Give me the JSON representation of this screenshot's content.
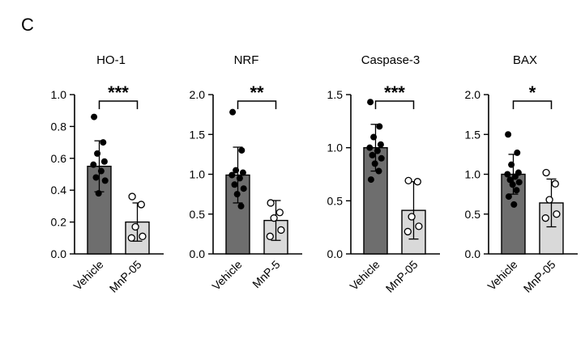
{
  "panel_label": "C",
  "chart_data": [
    {
      "type": "bar",
      "title": "HO-1",
      "categories": [
        "Vehicle",
        "MnP-05"
      ],
      "values": [
        0.55,
        0.2
      ],
      "error_sd": [
        0.16,
        0.12
      ],
      "ylim": [
        0,
        1.0
      ],
      "yticks": [
        0.0,
        0.2,
        0.4,
        0.6,
        0.8,
        1.0
      ],
      "ytick_labels": [
        "0.0",
        "0.2",
        "0.4",
        "0.6",
        "0.8",
        "1.0"
      ],
      "significance": "***",
      "points": [
        [
          0.86,
          0.7,
          0.63,
          0.58,
          0.56,
          0.52,
          0.48,
          0.46,
          0.38
        ],
        [
          0.36,
          0.31,
          0.17,
          0.11,
          0.1
        ]
      ]
    },
    {
      "type": "bar",
      "title": "NRF",
      "categories": [
        "Vehicle",
        "MnP-5"
      ],
      "values": [
        0.99,
        0.42
      ],
      "error_sd": [
        0.35,
        0.25
      ],
      "ylim": [
        0,
        2.0
      ],
      "yticks": [
        0.0,
        0.5,
        1.0,
        1.5,
        2.0
      ],
      "ytick_labels": [
        "0.0",
        "0.5",
        "1.0",
        "1.5",
        "2.0"
      ],
      "significance": "**",
      "points": [
        [
          1.78,
          1.3,
          1.05,
          1.02,
          0.99,
          0.95,
          0.87,
          0.82,
          0.75,
          0.6
        ],
        [
          0.64,
          0.52,
          0.45,
          0.3,
          0.22
        ]
      ]
    },
    {
      "type": "bar",
      "title": "Caspase-3",
      "categories": [
        "Vehicle",
        "MnP-05"
      ],
      "values": [
        1.0,
        0.41
      ],
      "error_sd": [
        0.22,
        0.27
      ],
      "ylim": [
        0,
        1.5
      ],
      "yticks": [
        0.0,
        0.5,
        1.0,
        1.5
      ],
      "ytick_labels": [
        "0.0",
        "0.5",
        "1.0",
        "1.5"
      ],
      "significance": "***",
      "points": [
        [
          1.43,
          1.2,
          1.1,
          1.03,
          1.0,
          0.97,
          0.93,
          0.9,
          0.85,
          0.78,
          0.7
        ],
        [
          0.69,
          0.68,
          0.35,
          0.26,
          0.21
        ]
      ]
    },
    {
      "type": "bar",
      "title": "BAX",
      "categories": [
        "Vehicle",
        "MnP-05"
      ],
      "values": [
        1.0,
        0.64
      ],
      "error_sd": [
        0.25,
        0.3
      ],
      "ylim": [
        0,
        2.0
      ],
      "yticks": [
        0.0,
        0.5,
        1.0,
        1.5,
        2.0
      ],
      "ytick_labels": [
        "0.0",
        "0.5",
        "1.0",
        "1.5",
        "2.0"
      ],
      "significance": "*",
      "points": [
        [
          1.5,
          1.27,
          1.12,
          1.02,
          1.0,
          0.97,
          0.93,
          0.9,
          0.87,
          0.8,
          0.72,
          0.62
        ],
        [
          1.02,
          0.88,
          0.68,
          0.5,
          0.45
        ]
      ]
    }
  ]
}
